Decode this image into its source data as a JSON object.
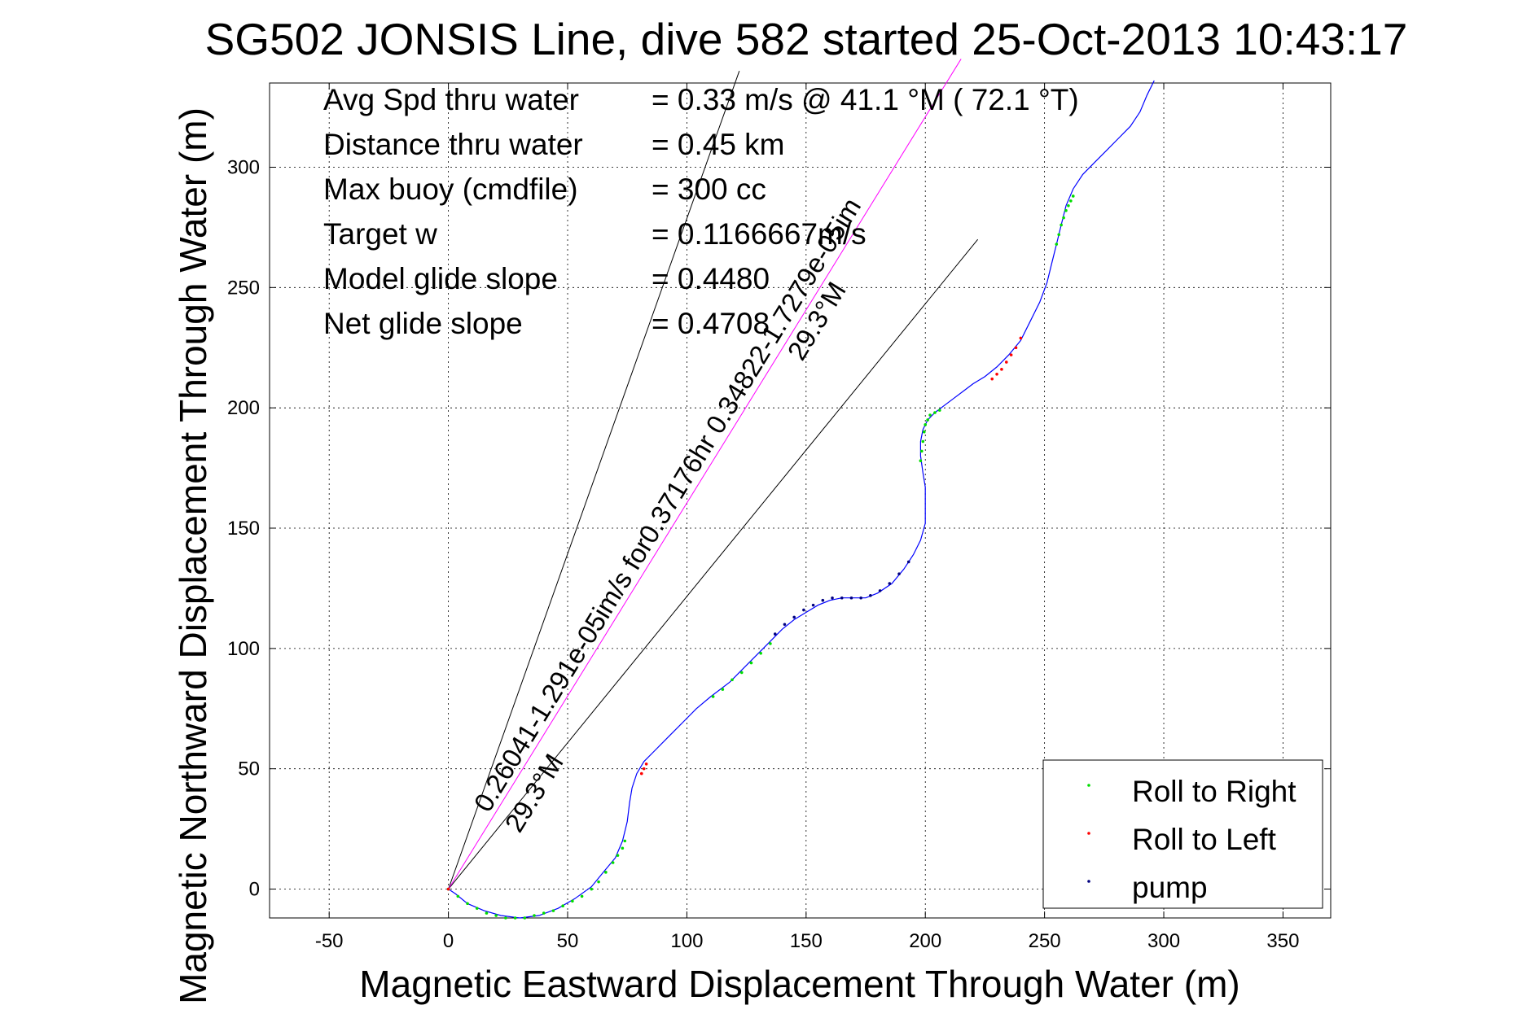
{
  "chart_data": {
    "type": "line",
    "title": "SG502 JONSIS Line, dive 582 started 25-Oct-2013 10:43:17",
    "xlabel": "Magnetic Eastward Displacement Through Water (m)",
    "ylabel": "Magnetic Northward Displacement Through Water (m)",
    "xlim": [
      -75,
      370
    ],
    "ylim": [
      -12,
      335
    ],
    "grid": true,
    "xticks": [
      -50,
      0,
      50,
      100,
      150,
      200,
      250,
      300,
      350
    ],
    "yticks": [
      0,
      50,
      100,
      150,
      200,
      250,
      300
    ],
    "legend_position": "bottom-right",
    "legend": [
      {
        "label": "Roll to Right",
        "color": "#00dd00"
      },
      {
        "label": "Roll to Left",
        "color": "#ff0000"
      },
      {
        "label": "pump",
        "color": "#000080"
      }
    ],
    "stats": [
      {
        "label": "Avg Spd thru water",
        "value": "=  0.33 m/s @  41.1 °M ( 72.1 °T)"
      },
      {
        "label": "Distance thru water",
        "value": "=  0.45 km"
      },
      {
        "label": "Max buoy (cmdfile)",
        "value": "= 300 cc"
      },
      {
        "label": "Target w",
        "value": "= 0.1166667m/s"
      },
      {
        "label": "Model glide slope",
        "value": "= 0.4480"
      },
      {
        "label": "Net glide slope",
        "value": "= 0.4708"
      }
    ],
    "annotations": {
      "current_label": "0.26041-1.291e-05im/s for0.37176hr 0.34822-1.7279e-05im",
      "heading_label_1": "29.3°M",
      "heading_label_2": "29.3°M"
    },
    "reference_lines": [
      {
        "name": "heading-line-1",
        "x": [
          0,
          122
        ],
        "y": [
          0,
          340
        ]
      },
      {
        "name": "heading-line-2",
        "x": [
          0,
          222
        ],
        "y": [
          0,
          270
        ]
      },
      {
        "name": "current-vector-line",
        "x": [
          0,
          215
        ],
        "y": [
          0,
          345
        ]
      }
    ],
    "track": {
      "color": "#0000ff",
      "x": [
        0,
        3,
        8,
        15,
        22,
        30,
        38,
        46,
        53,
        60,
        65,
        70,
        73,
        75,
        76,
        77,
        79,
        82,
        86,
        92,
        98,
        104,
        110,
        118,
        126,
        134,
        140,
        145,
        150,
        155,
        160,
        165,
        170,
        175,
        180,
        186,
        191,
        195,
        198,
        200,
        200,
        200,
        199,
        198,
        198,
        199,
        201,
        204,
        208,
        212,
        216,
        220,
        225,
        230,
        235,
        240,
        244,
        248,
        251,
        253,
        255,
        257,
        259,
        262,
        266,
        271,
        276,
        281,
        286,
        290,
        293,
        296
      ],
      "y": [
        0,
        -2,
        -6,
        -9,
        -11,
        -12,
        -11,
        -8,
        -4,
        1,
        7,
        13,
        20,
        28,
        36,
        42,
        48,
        53,
        57,
        63,
        69,
        75,
        80,
        86,
        94,
        102,
        108,
        112,
        115,
        118,
        120,
        121,
        121,
        121,
        123,
        127,
        133,
        139,
        145,
        152,
        160,
        167,
        173,
        180,
        186,
        191,
        195,
        198,
        201,
        204,
        207,
        210,
        213,
        217,
        222,
        228,
        236,
        244,
        252,
        260,
        268,
        276,
        284,
        291,
        297,
        302,
        307,
        312,
        317,
        323,
        330,
        336
      ]
    },
    "roll_right_points": {
      "x": [
        0,
        4,
        8,
        12,
        16,
        20,
        24,
        28,
        32,
        36,
        40,
        44,
        48,
        52,
        56,
        60,
        63,
        66,
        69,
        71,
        73,
        74,
        111,
        115,
        119,
        123,
        127,
        131,
        135,
        198,
        198.5,
        199,
        199.5,
        200,
        201,
        202,
        204,
        206,
        255,
        256,
        257,
        258,
        259,
        260,
        261,
        262
      ],
      "y": [
        0,
        -3,
        -6,
        -8,
        -10,
        -11,
        -12,
        -12,
        -12,
        -11,
        -10,
        -9,
        -7,
        -5,
        -3,
        0,
        3,
        7,
        11,
        14,
        17,
        20,
        80,
        83,
        87,
        90,
        94,
        98,
        102,
        178,
        182,
        186,
        190,
        193,
        195,
        197,
        198,
        199,
        268,
        272,
        276,
        279,
        282,
        284,
        286,
        288
      ]
    },
    "roll_left_points": {
      "x": [
        0,
        81,
        82,
        83,
        228,
        230,
        232,
        234,
        236,
        238,
        240
      ],
      "y": [
        0,
        48,
        50,
        52,
        212,
        214,
        216,
        219,
        222,
        225,
        229
      ]
    },
    "pump_points": {
      "x": [
        137,
        141,
        145,
        149,
        153,
        157,
        161,
        165,
        169,
        173,
        177,
        181,
        185,
        189,
        193
      ],
      "y": [
        106,
        110,
        113,
        116,
        118,
        120,
        121,
        121,
        121,
        121,
        122,
        124,
        127,
        131,
        136
      ]
    }
  }
}
